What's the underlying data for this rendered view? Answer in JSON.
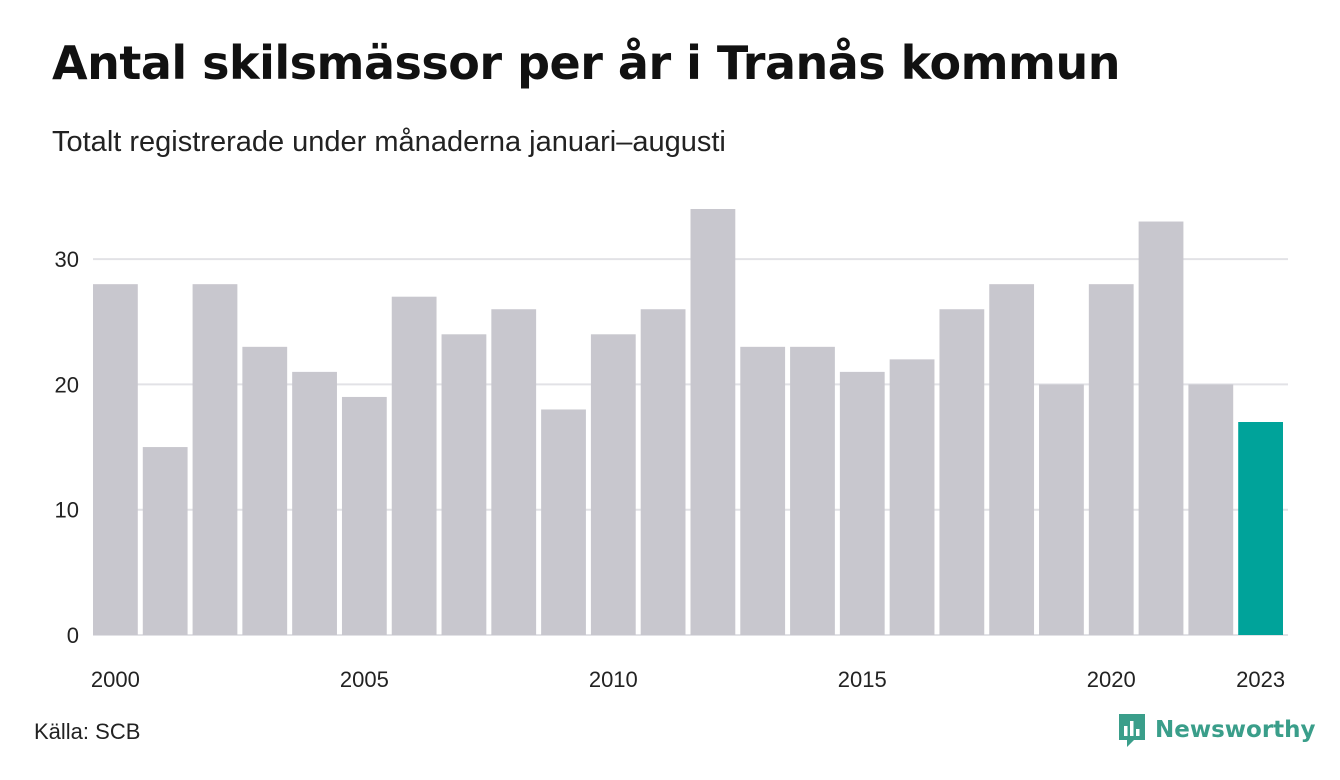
{
  "header": {
    "title": "Antal skilsmässor per år i Tranås kommun",
    "subtitle": "Totalt registrerade under månaderna januari–augusti"
  },
  "footer": {
    "source": "Källa: SCB",
    "brand": "Newsworthy",
    "brand_icon": "newsworthy-logo-icon"
  },
  "colors": {
    "bar_default": "#c8c7ce",
    "bar_highlight": "#00a39a",
    "grid": "#e2e2e6",
    "brand": "#3a9e8a"
  },
  "chart_data": {
    "type": "bar",
    "categories": [
      "2000",
      "2001",
      "2002",
      "2003",
      "2004",
      "2005",
      "2006",
      "2007",
      "2008",
      "2009",
      "2010",
      "2011",
      "2012",
      "2013",
      "2014",
      "2015",
      "2016",
      "2017",
      "2018",
      "2019",
      "2020",
      "2021",
      "2022",
      "2023"
    ],
    "values": [
      28,
      15,
      28,
      23,
      21,
      19,
      27,
      24,
      26,
      18,
      24,
      26,
      34,
      23,
      23,
      21,
      22,
      26,
      28,
      20,
      28,
      33,
      20,
      17
    ],
    "highlight": "2023",
    "title": "Antal skilsmässor per år i Tranås kommun",
    "subtitle": "Totalt registrerade under månaderna januari–augusti",
    "xlabel": "",
    "ylabel": "",
    "ylim": [
      0,
      34
    ],
    "yticks": [
      0,
      10,
      20,
      30
    ],
    "xtick_labels": [
      "2000",
      "2005",
      "2010",
      "2015",
      "2020",
      "2023"
    ],
    "grid": "horizontal",
    "legend": "none"
  }
}
